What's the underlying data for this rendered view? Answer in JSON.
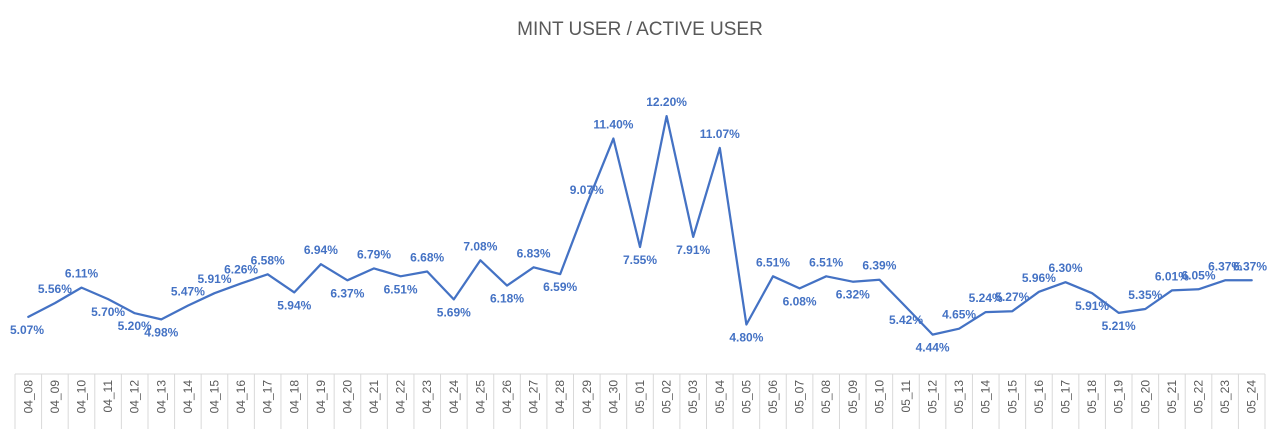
{
  "chart_data": {
    "type": "line",
    "title": "MINT USER / ACTIVE USER",
    "xlabel": "",
    "ylabel": "",
    "ylim": [
      4,
      13
    ],
    "grid": false,
    "legend": "none",
    "line_color": "#4472C4",
    "label_color": "#4472C4",
    "categories": [
      "04_08",
      "04_09",
      "04_10",
      "04_11",
      "04_12",
      "04_13",
      "04_14",
      "04_15",
      "04_16",
      "04_17",
      "04_18",
      "04_19",
      "04_20",
      "04_21",
      "04_22",
      "04_23",
      "04_24",
      "04_25",
      "04_26",
      "04_27",
      "04_28",
      "04_29",
      "04_30",
      "05_01",
      "05_02",
      "05_03",
      "05_04",
      "05_05",
      "05_06",
      "05_07",
      "05_08",
      "05_09",
      "05_10",
      "05_11",
      "05_12",
      "05_13",
      "05_14",
      "05_15",
      "05_16",
      "05_17",
      "05_18",
      "05_19",
      "05_20",
      "05_21",
      "05_22",
      "05_23",
      "05_24"
    ],
    "values": [
      5.07,
      5.56,
      6.11,
      5.7,
      5.2,
      4.98,
      5.47,
      5.91,
      6.26,
      6.58,
      5.94,
      6.94,
      6.37,
      6.79,
      6.51,
      6.68,
      5.69,
      7.08,
      6.18,
      6.83,
      6.59,
      9.07,
      11.4,
      7.55,
      12.2,
      7.91,
      11.07,
      4.8,
      6.51,
      6.08,
      6.51,
      6.32,
      6.39,
      5.42,
      4.44,
      4.65,
      5.24,
      5.27,
      5.96,
      6.3,
      5.91,
      5.21,
      5.35,
      6.01,
      6.05,
      6.37,
      6.37
    ],
    "labels": [
      "5.07%",
      "5.56%",
      "6.11%",
      "5.70%",
      "5.20%",
      "4.98%",
      "5.47%",
      "5.91%",
      "6.26%",
      "6.58%",
      "5.94%",
      "6.94%",
      "6.37%",
      "6.79%",
      "6.51%",
      "6.68%",
      "5.69%",
      "7.08%",
      "6.18%",
      "6.83%",
      "6.59%",
      "9.07%",
      "11.40%",
      "7.55%",
      "12.20%",
      "7.91%",
      "11.07%",
      "4.80%",
      "6.51%",
      "6.08%",
      "6.51%",
      "6.32%",
      "6.39%",
      "5.42%",
      "4.44%",
      "4.65%",
      "5.24%",
      "5.27%",
      "5.96%",
      "6.30%",
      "5.91%",
      "5.21%",
      "5.35%",
      "6.01%",
      "6.05%",
      "6.37%",
      "6.37%"
    ]
  }
}
